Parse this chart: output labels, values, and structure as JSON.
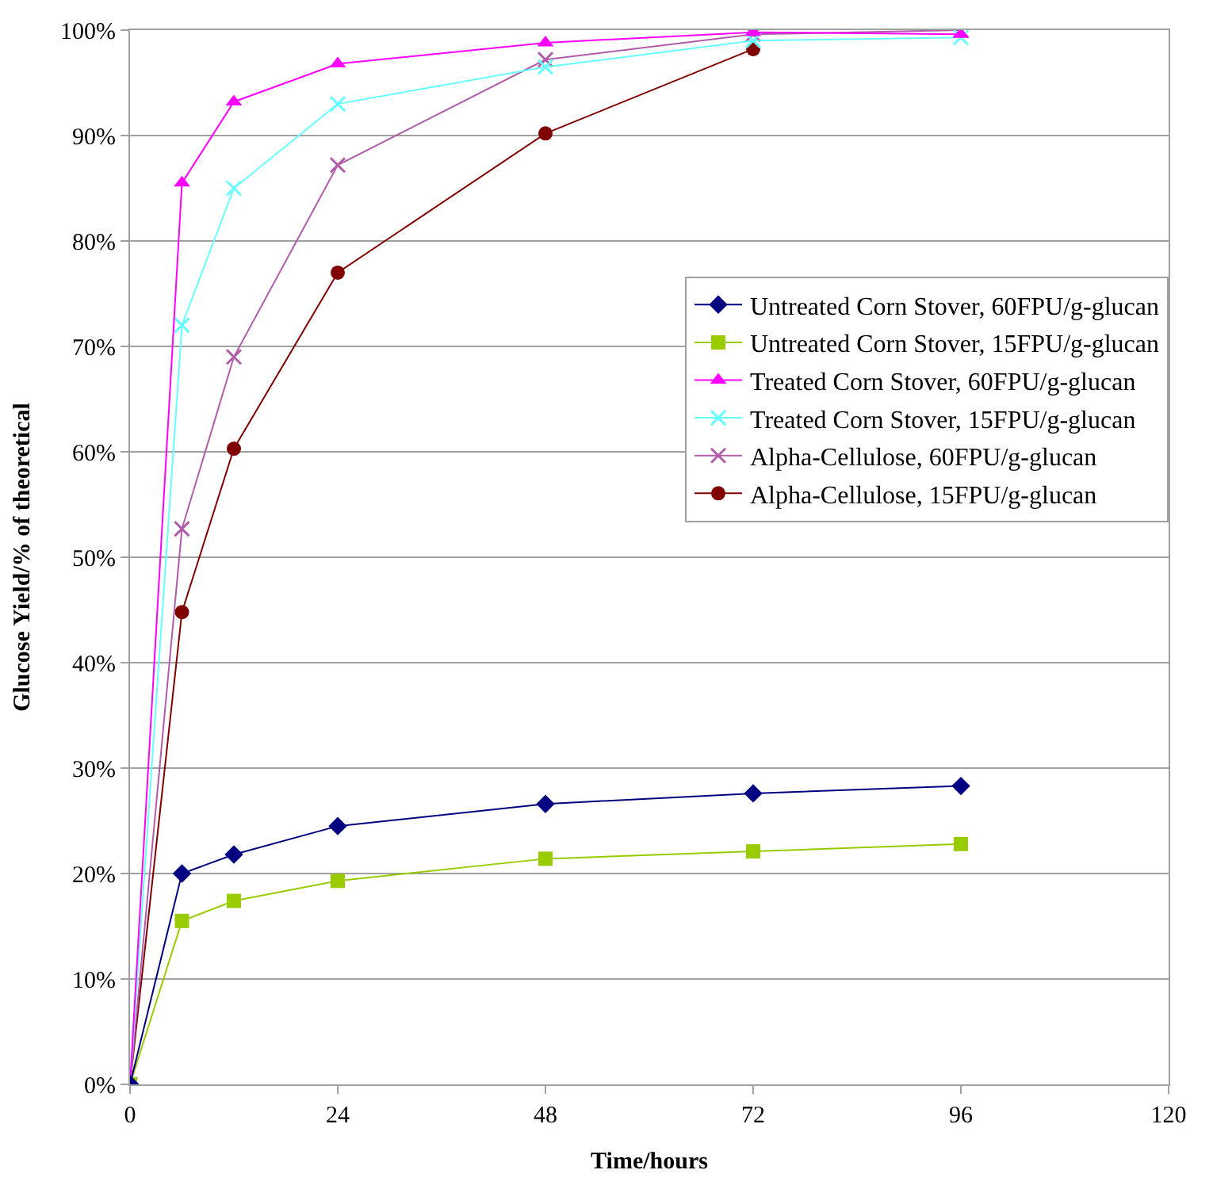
{
  "chart_data": {
    "type": "line",
    "xlabel": "Time/hours",
    "ylabel": "Glucose Yield/% of theoretical",
    "x": [
      0,
      6,
      12,
      24,
      48,
      72,
      96
    ],
    "series": [
      {
        "name": "Untreated Corn Stover, 60FPU/g-glucan",
        "color": "#000080",
        "marker": "diamond",
        "values": [
          0,
          20,
          21.8,
          24.5,
          26.6,
          27.6,
          28.3
        ]
      },
      {
        "name": "Untreated Corn Stover, 15FPU/g-glucan",
        "color": "#99cc00",
        "marker": "square",
        "values": [
          0,
          15.5,
          17.4,
          19.3,
          21.4,
          22.1,
          22.8
        ]
      },
      {
        "name": "Treated Corn Stover, 60FPU/g-glucan",
        "color": "#ff00ff",
        "marker": "triangle",
        "values": [
          0,
          85.5,
          93.2,
          96.8,
          98.8,
          99.8,
          99.6
        ]
      },
      {
        "name": "Treated Corn Stover, 15FPU/g-glucan",
        "color": "#66ffff",
        "marker": "cross",
        "values": [
          0,
          72,
          85,
          93,
          96.5,
          99,
          99.3
        ]
      },
      {
        "name": "Alpha-Cellulose, 60FPU/g-glucan",
        "color": "#b05ca8",
        "marker": "cross",
        "values": [
          0,
          52.7,
          69,
          87.2,
          97.2,
          99.6,
          100
        ]
      },
      {
        "name": "Alpha-Cellulose, 15FPU/g-glucan",
        "color": "#800000",
        "marker": "circle",
        "values": [
          0,
          44.8,
          60.3,
          77,
          90.2,
          98.2,
          null
        ]
      }
    ],
    "xlim": [
      0,
      120
    ],
    "xticks": [
      0,
      24,
      48,
      72,
      96,
      120
    ],
    "ylim": [
      0,
      100
    ],
    "yticks": [
      {
        "value": 0,
        "label": "0%"
      },
      {
        "value": 10,
        "label": "10%"
      },
      {
        "value": 20,
        "label": "20%"
      },
      {
        "value": 30,
        "label": "30%"
      },
      {
        "value": 40,
        "label": "40%"
      },
      {
        "value": 50,
        "label": "50%"
      },
      {
        "value": 60,
        "label": "60%"
      },
      {
        "value": 70,
        "label": "70%"
      },
      {
        "value": 80,
        "label": "80%"
      },
      {
        "value": 90,
        "label": "90%"
      },
      {
        "value": 100,
        "label": "100%"
      }
    ],
    "grid": "y",
    "legend": "right",
    "line_style": "solid"
  }
}
